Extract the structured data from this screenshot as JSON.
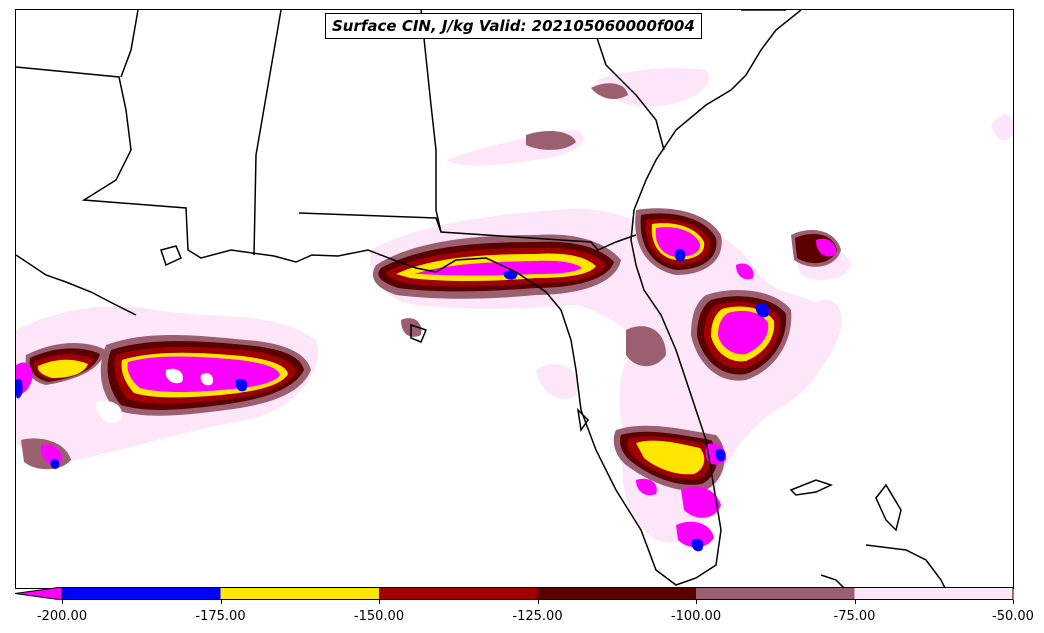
{
  "title": "Surface CIN, J/kg Valid: 202105060000f004",
  "colorbar": {
    "extend": "min",
    "levels": [
      -200,
      -175,
      -150,
      -125,
      -100,
      -75,
      -50
    ],
    "tick_labels": [
      "-200.00",
      "-175.00",
      "-150.00",
      "-125.00",
      "-100.00",
      "-75.00",
      "-50.00"
    ],
    "under_color": "#ff00ff",
    "colors": [
      "#0000ff",
      "#ffe600",
      "#a00000",
      "#5a0000",
      "#9a6070",
      "#fde6fa"
    ]
  },
  "palette": {
    "magenta": "#ff00ff",
    "blue": "#0000ff",
    "yellow": "#ffe600",
    "dark_red": "#a00000",
    "maroon": "#5a0000",
    "mauve": "#9a6070",
    "pale_pink": "#fde6fa"
  }
}
